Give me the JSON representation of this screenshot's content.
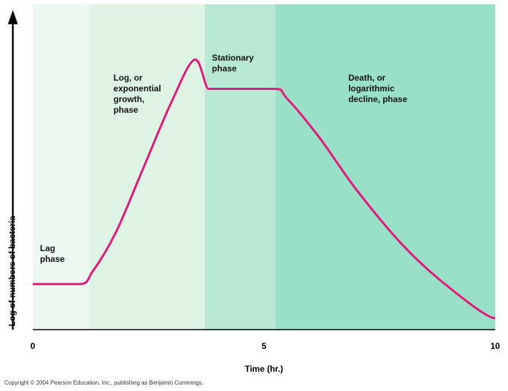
{
  "chart_data": {
    "type": "line",
    "title": "",
    "xlabel": "Time (hr.)",
    "ylabel": "Log of numbers of bacteria",
    "xlim": [
      0,
      10
    ],
    "xticks": [
      "0",
      "5",
      "10"
    ],
    "ylim": [
      0,
      10
    ],
    "grid": false,
    "regions": [
      {
        "label_lines": [
          "Lag",
          "phase"
        ],
        "x_start": 0,
        "x_end": 1.22,
        "color": "#eef8f2"
      },
      {
        "label_lines": [
          "Log, or",
          "exponential",
          "growth,",
          "phase"
        ],
        "x_start": 1.22,
        "x_end": 3.72,
        "color": "#ddf3e3"
      },
      {
        "label_lines": [
          "Stationary",
          "phase"
        ],
        "x_start": 3.72,
        "x_end": 5.25,
        "color": "#b8e8d3"
      },
      {
        "label_lines": [
          "Death, or",
          "logarithmic",
          "decline, phase"
        ],
        "x_start": 5.25,
        "x_end": 10,
        "color": "#99e0c8"
      }
    ],
    "series": [
      {
        "color": "#e6157a",
        "x": [
          0,
          1.0,
          1.3,
          1.8,
          2.4,
          3.0,
          3.5,
          3.8,
          4.0,
          5.2,
          5.5,
          6.2,
          7.0,
          8.0,
          9.0,
          10.0
        ],
        "y": [
          1.4,
          1.4,
          1.8,
          3.0,
          5.0,
          7.0,
          8.3,
          7.4,
          7.4,
          7.4,
          7.1,
          5.9,
          4.3,
          2.6,
          1.3,
          0.35
        ]
      }
    ]
  },
  "copyright": "Copyright © 2004 Pearson Education, Inc., publishing as Benjamin Cummings."
}
